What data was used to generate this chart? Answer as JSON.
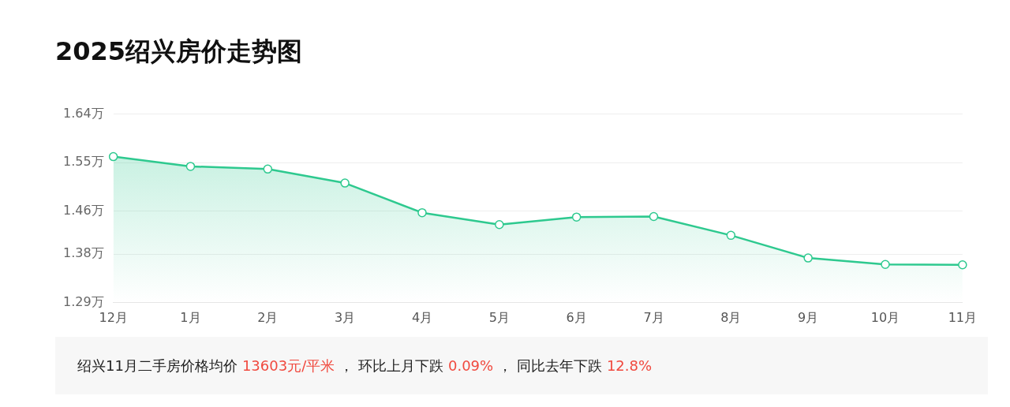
{
  "chart_data": {
    "type": "area",
    "title": "2025绍兴房价走势图",
    "categories": [
      "12月",
      "1月",
      "2月",
      "3月",
      "4月",
      "5月",
      "6月",
      "7月",
      "8月",
      "9月",
      "10月",
      "11月"
    ],
    "values": [
      1.561,
      1.543,
      1.538,
      1.512,
      1.457,
      1.435,
      1.449,
      1.45,
      1.415,
      1.373,
      1.361,
      1.3603
    ],
    "color": "#2ec98f",
    "ylim": [
      1.29,
      1.64
    ],
    "yticks": [
      {
        "value": 1.29,
        "label": "1.29万"
      },
      {
        "value": 1.38,
        "label": "1.38万"
      },
      {
        "value": 1.46,
        "label": "1.46万"
      },
      {
        "value": 1.55,
        "label": "1.55万"
      },
      {
        "value": 1.64,
        "label": "1.64万"
      }
    ],
    "grid": "y",
    "legend": false,
    "marker": "circle",
    "line_style": "solid",
    "annotations": [
      "绍兴11月二手房价格均价",
      "13603元/平米",
      "， 环比上月下跌",
      "0.09%",
      "， 同比去年下跌",
      "12.8%"
    ]
  }
}
